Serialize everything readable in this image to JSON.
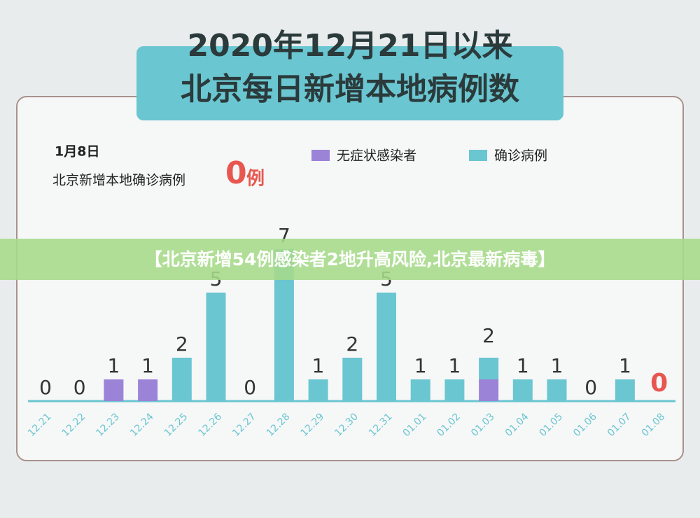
{
  "chart_data": {
    "type": "bar",
    "stacked": true,
    "title": "2020年12月21日以来",
    "subtitle": "北京每日新增本地病例数",
    "annotation": {
      "date": "1月8日",
      "text": "北京新增本地确诊病例",
      "value": 0,
      "unit": "例"
    },
    "categories": [
      "12.21",
      "12.22",
      "12.23",
      "12.24",
      "12.25",
      "12.26",
      "12.27",
      "12.28",
      "12.29",
      "12.30",
      "12.31",
      "01.01",
      "01.02",
      "01.03",
      "01.04",
      "01.05",
      "01.06",
      "01.07",
      "01.08"
    ],
    "series": [
      {
        "name": "无症状感染者",
        "color": "#9b83d8",
        "values": [
          0,
          0,
          1,
          1,
          0,
          0,
          0,
          0,
          0,
          0,
          0,
          0,
          0,
          1,
          0,
          0,
          0,
          0,
          0
        ]
      },
      {
        "name": "确诊病例",
        "color": "#6ac6d1",
        "values": [
          0,
          0,
          0,
          0,
          2,
          5,
          0,
          7,
          1,
          2,
          5,
          1,
          1,
          1,
          1,
          1,
          0,
          1,
          0
        ]
      }
    ],
    "totals": [
      0,
      0,
      1,
      1,
      2,
      5,
      0,
      7,
      1,
      2,
      5,
      1,
      1,
      2,
      1,
      1,
      0,
      1,
      0
    ]
  },
  "banner": "【北京新增54例感染者2地升高风险,北京最新病毒】"
}
